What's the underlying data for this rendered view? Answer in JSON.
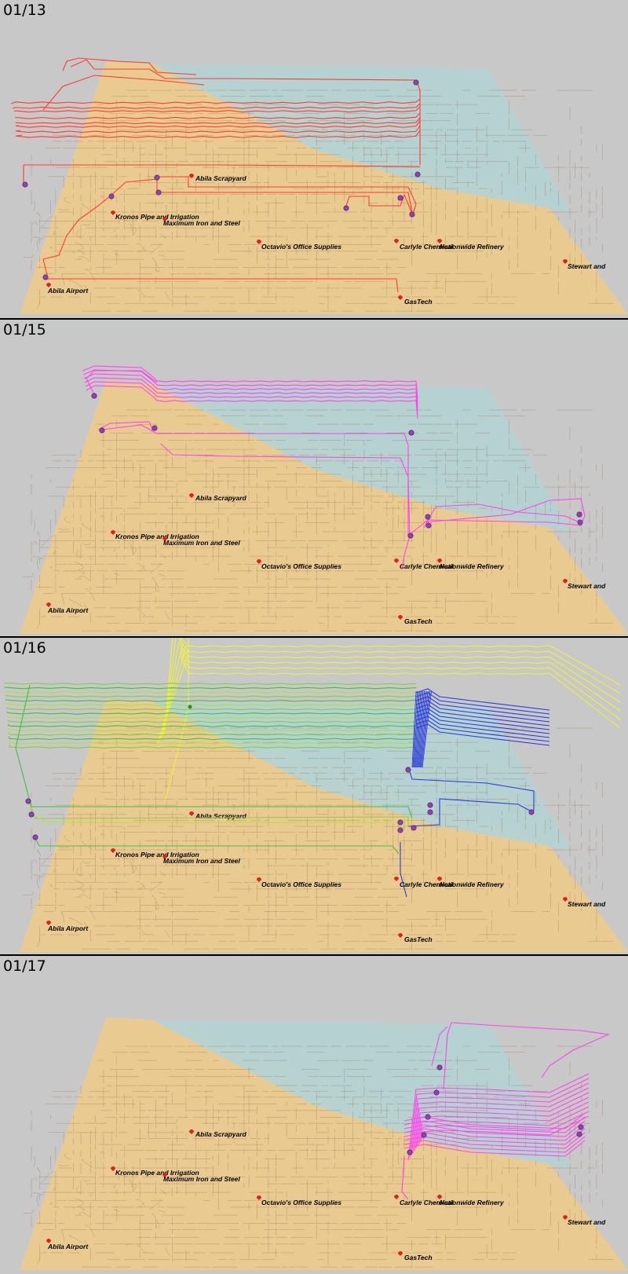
{
  "colors": {
    "background": "#c8c8c8",
    "land": "#e9cb92",
    "water": "#b5d2d3",
    "roads": "#8a5a3a",
    "stop_marker": "#8e44ad",
    "poi_marker": "#e02020",
    "trail_red": "#ff3b30",
    "trail_magenta": "#ff44ee",
    "trail_yellow": "#f0f040",
    "trail_green": "#40c040",
    "trail_blue": "#2a3ad8"
  },
  "locations": [
    {
      "name": "Abila Scrapyard",
      "icon": "map-pin-icon"
    },
    {
      "name": "Kronos Pipe and Irrigation",
      "icon": "map-pin-icon"
    },
    {
      "name": "Maximum Iron and Steel",
      "icon": "map-pin-icon"
    },
    {
      "name": "Octavio's Office Supplies",
      "icon": "map-pin-icon"
    },
    {
      "name": "Carlyle Chemical",
      "icon": "map-pin-icon"
    },
    {
      "name": "Nationwide Refinery",
      "icon": "map-pin-icon"
    },
    {
      "name": "Abila Airport",
      "icon": "map-pin-icon"
    },
    {
      "name": "GasTech",
      "icon": "map-pin-icon"
    },
    {
      "name": "Stewart and",
      "icon": "map-pin-icon"
    }
  ],
  "panels": [
    {
      "date": "01/13",
      "trail_color": "trail_red"
    },
    {
      "date": "01/15",
      "trail_color": "trail_magenta"
    },
    {
      "date": "01/16",
      "trail_color": "trail_mixed"
    },
    {
      "date": "01/17",
      "trail_color": "trail_magenta"
    }
  ]
}
